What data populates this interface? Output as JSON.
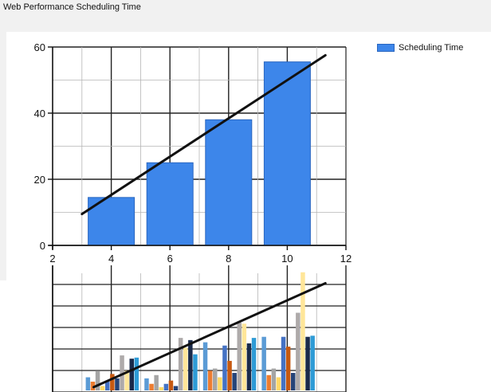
{
  "chart_data": [
    {
      "type": "bar",
      "title": "Web Performance Scheduling Time",
      "legend": {
        "position": "top-right",
        "entries": [
          "Scheduling Time"
        ]
      },
      "xlim": [
        2,
        12
      ],
      "ylim": [
        0,
        60
      ],
      "xticks": [
        2,
        4,
        6,
        8,
        10,
        12
      ],
      "yticks": [
        0,
        20,
        40,
        60
      ],
      "grid": true,
      "series": [
        {
          "name": "Scheduling Time",
          "color": "#3d86ea",
          "x": [
            4,
            6,
            8,
            10
          ],
          "values": [
            14.5,
            25,
            38,
            55.5
          ]
        }
      ],
      "trendline": {
        "x": [
          3,
          11.3
        ],
        "y": [
          9.5,
          57.5
        ],
        "color": "#111111"
      }
    },
    {
      "type": "bar",
      "xlim": [
        2,
        12
      ],
      "grid": true,
      "groups_x": [
        4,
        6,
        8,
        10
      ],
      "series_colors": [
        "#5b9bd5",
        "#ed7d31",
        "#a5a5a5",
        "#ffd966",
        "#4472c4",
        "#c65911",
        "#264478",
        "#aeaaaa",
        "#ffe699",
        "#1a2a4a",
        "#2e9bd6"
      ],
      "group_values": [
        [
          0.6,
          0.4,
          0.9,
          0.2,
          0.45,
          0.75,
          0.55,
          1.6,
          0.9,
          1.45,
          1.5
        ],
        [
          0.55,
          0.3,
          0.7,
          0.15,
          0.3,
          0.45,
          0.2,
          2.4,
          1.95,
          2.3,
          1.65
        ],
        [
          2.2,
          0.9,
          1.0,
          0.6,
          2.05,
          1.35,
          0.8,
          3.1,
          3.05,
          2.15,
          2.4
        ],
        [
          2.45,
          0.7,
          1.0,
          0.6,
          2.45,
          2.0,
          0.8,
          3.55,
          5.4,
          2.45,
          2.5
        ]
      ],
      "ylim": [
        0,
        5.5
      ],
      "trendline": {
        "x": [
          3.4,
          11.3
        ],
        "y": [
          0.15,
          4.9
        ],
        "color": "#111111"
      }
    }
  ]
}
